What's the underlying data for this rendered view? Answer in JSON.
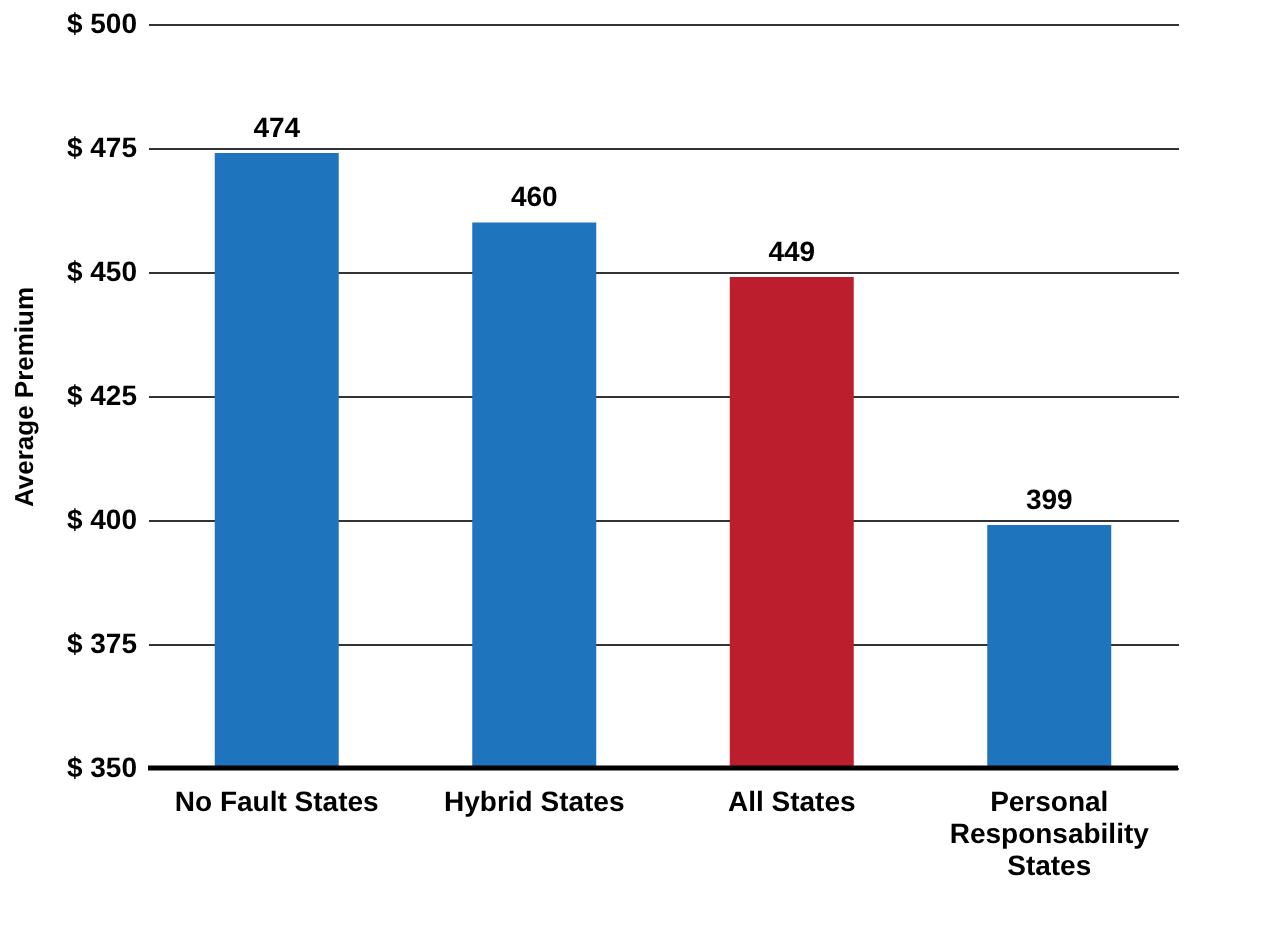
{
  "chart_data": {
    "type": "bar",
    "ylabel": "Average Premium",
    "categories": [
      "No Fault States",
      "Hybrid States",
      "All States",
      "Personal Responsability States"
    ],
    "values": [
      474,
      460,
      449,
      399
    ],
    "colors": [
      "#1f75bd",
      "#1f75bd",
      "#bd1e2d",
      "#1f75bd"
    ],
    "ylim": [
      350,
      500
    ],
    "yticks": [
      {
        "value": 350,
        "label": "$ 350"
      },
      {
        "value": 375,
        "label": "$ 375"
      },
      {
        "value": 400,
        "label": "$ 400"
      },
      {
        "value": 425,
        "label": "$ 425"
      },
      {
        "value": 450,
        "label": "$ 450"
      },
      {
        "value": 475,
        "label": "$ 475"
      },
      {
        "value": 500,
        "label": "$ 500"
      }
    ],
    "grid": "y",
    "data_labels": true
  }
}
